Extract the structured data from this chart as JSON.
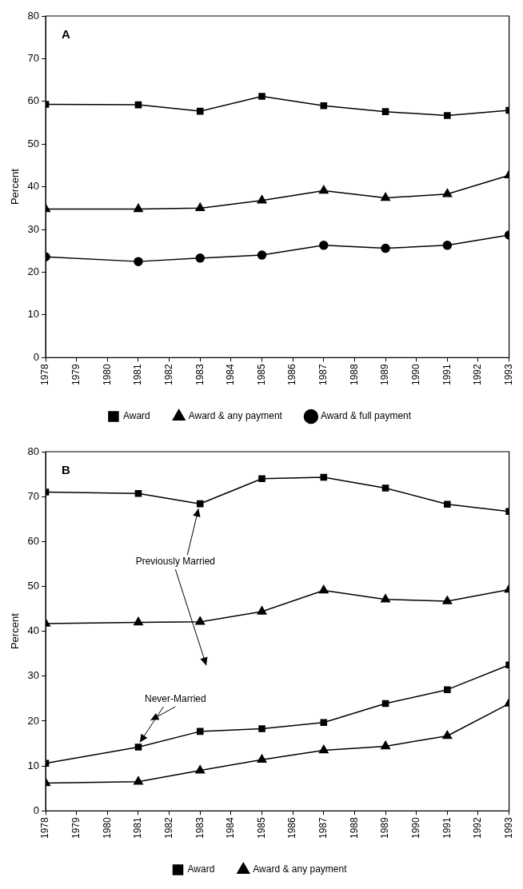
{
  "chart_data": [
    {
      "type": "line",
      "title": "A",
      "ylabel": "Percent",
      "x": [
        1978,
        1981,
        1983,
        1985,
        1987,
        1989,
        1991,
        1993
      ],
      "xlim": [
        1978,
        1993
      ],
      "xticks": [
        1978,
        1979,
        1980,
        1981,
        1982,
        1983,
        1984,
        1985,
        1986,
        1987,
        1988,
        1989,
        1990,
        1991,
        1992,
        1993
      ],
      "ylim": [
        0,
        80
      ],
      "yticks": [
        0,
        10,
        20,
        30,
        40,
        50,
        60,
        70,
        80
      ],
      "grid": false,
      "legend": "bottom",
      "series": [
        {
          "name": "Award",
          "color": "#000000",
          "marker": "square",
          "values": [
            59.3,
            59.2,
            57.7,
            61.2,
            59.0,
            57.6,
            56.7,
            57.9
          ]
        },
        {
          "name": "Award & any payment",
          "color": "#000000",
          "marker": "triangle",
          "values": [
            34.8,
            34.8,
            35.0,
            36.8,
            39.1,
            37.4,
            38.3,
            42.7
          ]
        },
        {
          "name": "Award & full payment",
          "color": "#000000",
          "marker": "circle",
          "values": [
            23.6,
            22.5,
            23.3,
            24.0,
            26.3,
            25.6,
            26.3,
            28.7
          ]
        }
      ]
    },
    {
      "type": "line",
      "title": "B",
      "ylabel": "Percent",
      "x": [
        1978,
        1981,
        1983,
        1985,
        1987,
        1989,
        1991,
        1993
      ],
      "xlim": [
        1978,
        1993
      ],
      "xticks": [
        1978,
        1979,
        1980,
        1981,
        1982,
        1983,
        1984,
        1985,
        1986,
        1987,
        1988,
        1989,
        1990,
        1991,
        1992,
        1993
      ],
      "ylim": [
        0,
        80
      ],
      "yticks": [
        0,
        10,
        20,
        30,
        40,
        50,
        60,
        70,
        80
      ],
      "grid": false,
      "legend": "bottom",
      "annotations": [
        {
          "text": "Previously Married",
          "x": 1983,
          "y": 68.4
        },
        {
          "text": "Never-Married",
          "x": 1981,
          "y": 14.2
        }
      ],
      "series": [
        {
          "name": "Award",
          "color": "#000000",
          "marker": "square",
          "values": [
            71.0,
            70.7,
            68.4,
            74.0,
            74.3,
            71.9,
            68.3,
            66.7
          ]
        },
        {
          "name": "Award & any payment",
          "color": "#000000",
          "marker": "triangle",
          "values": [
            41.7,
            42.0,
            42.1,
            44.4,
            49.1,
            47.1,
            46.7,
            49.3
          ]
        },
        {
          "color": "#000000",
          "marker": "square",
          "values": [
            10.6,
            14.2,
            17.7,
            18.3,
            19.7,
            23.9,
            27.0,
            32.5
          ]
        },
        {
          "color": "#000000",
          "marker": "triangle",
          "values": [
            6.2,
            6.5,
            9.0,
            11.4,
            13.5,
            14.4,
            16.7,
            23.9
          ]
        }
      ]
    }
  ]
}
